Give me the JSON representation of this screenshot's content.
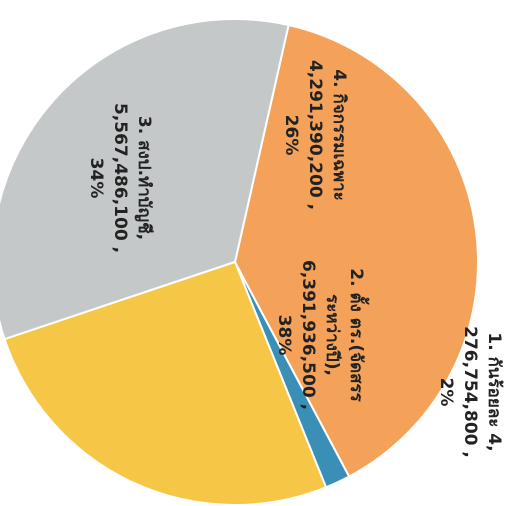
{
  "chart_data": {
    "type": "pie",
    "title": "",
    "slices": [
      {
        "label_lines": [
          "1. กันร้อยละ 4,",
          "276,754,800 ,",
          "2%"
        ],
        "value": 276754800,
        "percent": 2,
        "color": "#3a8fb7"
      },
      {
        "label_lines": [
          "2. ตั้ง ตร.(จัดสรร",
          "ระหว่างปี),",
          "6,391,936,500 ,",
          "38%"
        ],
        "value": 6391936500,
        "percent": 38,
        "color": "#f4a25a"
      },
      {
        "label_lines": [
          "3. สงป.ทำบัญชี,",
          "5,567,486,100 ,",
          "34%"
        ],
        "value": 5567486100,
        "percent": 34,
        "color": "#c5c8c8"
      },
      {
        "label_lines": [
          "4. กิจกรรมเฉพาะ",
          "4,291,390,200 ,",
          "26%"
        ],
        "value": 4291390200,
        "percent": 26,
        "color": "#f6c647"
      }
    ],
    "legend": "none",
    "orientation": "rotated-90-clockwise"
  }
}
